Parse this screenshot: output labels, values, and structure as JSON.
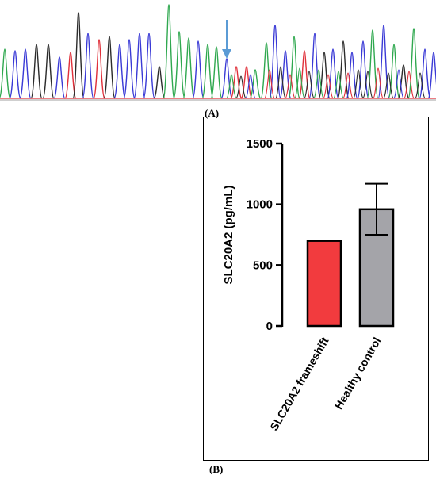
{
  "panel_a": {
    "label": "(A)",
    "trace_colors": {
      "A": "#2fa84f",
      "C": "#3a3ad6",
      "G": "#2b2b2b",
      "T": "#e0303a"
    },
    "arrow_color": "#5b9bd5"
  },
  "panel_b": {
    "label": "(B)"
  },
  "chart_data": {
    "type": "bar",
    "categories": [
      "SLC20A2 frameshift",
      "Healthy control"
    ],
    "values": [
      700,
      960
    ],
    "error": [
      null,
      [
        750,
        1170
      ]
    ],
    "bar_colors": [
      "#f23b3e",
      "#a4a4a9"
    ],
    "ylabel": "SLC20A2 (pg/mL)",
    "xlabel": "",
    "ylim": [
      0,
      1500
    ],
    "yticks": [
      0,
      500,
      1000,
      1500
    ],
    "grid": false,
    "legend": "none"
  }
}
